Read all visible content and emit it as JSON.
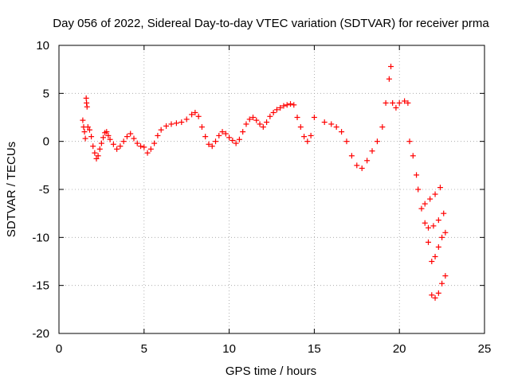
{
  "chart_data": {
    "type": "scatter",
    "title": "Day 056 of 2022, Sidereal Day-to-day VTEC variation (SDTVAR) for receiver prma",
    "xlabel": "GPS time / hours",
    "ylabel": "SDTVAR / TECUs",
    "xlim": [
      0,
      25
    ],
    "ylim": [
      -20,
      10
    ],
    "xticks": [
      0,
      5,
      10,
      15,
      20,
      25
    ],
    "yticks": [
      -20,
      -15,
      -10,
      -5,
      0,
      5,
      10
    ],
    "xtick_labels": [
      "0",
      "5",
      "10",
      "15",
      "20",
      "25"
    ],
    "ytick_labels": [
      "-20",
      "-15",
      "-10",
      "-5",
      "0",
      "5",
      "10"
    ],
    "grid": true,
    "marker": "plus",
    "color": "#ff0000",
    "series": [
      {
        "values_xy": [
          [
            1.4,
            2.2
          ],
          [
            1.45,
            1.5
          ],
          [
            1.5,
            1.0
          ],
          [
            1.55,
            0.3
          ],
          [
            1.6,
            4.5
          ],
          [
            1.62,
            4.0
          ],
          [
            1.65,
            3.6
          ],
          [
            1.7,
            1.5
          ],
          [
            1.8,
            1.2
          ],
          [
            1.9,
            0.5
          ],
          [
            2.0,
            -0.5
          ],
          [
            2.1,
            -1.2
          ],
          [
            2.2,
            -1.8
          ],
          [
            2.3,
            -1.5
          ],
          [
            2.4,
            -0.8
          ],
          [
            2.5,
            -0.2
          ],
          [
            2.6,
            0.4
          ],
          [
            2.7,
            0.9
          ],
          [
            2.8,
            1.0
          ],
          [
            2.9,
            0.6
          ],
          [
            3.0,
            0.2
          ],
          [
            3.2,
            -0.3
          ],
          [
            3.4,
            -0.8
          ],
          [
            3.6,
            -0.5
          ],
          [
            3.8,
            0.0
          ],
          [
            4.0,
            0.5
          ],
          [
            4.2,
            0.8
          ],
          [
            4.4,
            0.3
          ],
          [
            4.6,
            -0.2
          ],
          [
            4.8,
            -0.5
          ],
          [
            5.0,
            -0.6
          ],
          [
            5.2,
            -1.2
          ],
          [
            5.4,
            -0.8
          ],
          [
            5.6,
            -0.2
          ],
          [
            5.8,
            0.6
          ],
          [
            6.0,
            1.2
          ],
          [
            6.3,
            1.6
          ],
          [
            6.6,
            1.8
          ],
          [
            6.9,
            1.9
          ],
          [
            7.2,
            2.0
          ],
          [
            7.5,
            2.3
          ],
          [
            7.8,
            2.8
          ],
          [
            8.0,
            3.0
          ],
          [
            8.2,
            2.6
          ],
          [
            8.4,
            1.5
          ],
          [
            8.6,
            0.5
          ],
          [
            8.8,
            -0.3
          ],
          [
            9.0,
            -0.5
          ],
          [
            9.2,
            0.0
          ],
          [
            9.4,
            0.6
          ],
          [
            9.6,
            1.0
          ],
          [
            9.8,
            0.8
          ],
          [
            10.0,
            0.4
          ],
          [
            10.2,
            0.1
          ],
          [
            10.4,
            -0.2
          ],
          [
            10.6,
            0.2
          ],
          [
            10.8,
            1.0
          ],
          [
            11.0,
            1.8
          ],
          [
            11.2,
            2.3
          ],
          [
            11.4,
            2.5
          ],
          [
            11.6,
            2.2
          ],
          [
            11.8,
            1.8
          ],
          [
            12.0,
            1.5
          ],
          [
            12.2,
            2.0
          ],
          [
            12.4,
            2.6
          ],
          [
            12.6,
            3.0
          ],
          [
            12.8,
            3.3
          ],
          [
            13.0,
            3.5
          ],
          [
            13.2,
            3.7
          ],
          [
            13.4,
            3.8
          ],
          [
            13.6,
            3.9
          ],
          [
            13.8,
            3.8
          ],
          [
            14.0,
            2.5
          ],
          [
            14.2,
            1.5
          ],
          [
            14.4,
            0.5
          ],
          [
            14.6,
            0.0
          ],
          [
            14.8,
            0.6
          ],
          [
            15.0,
            2.5
          ],
          [
            15.6,
            2.0
          ],
          [
            16.0,
            1.8
          ],
          [
            16.3,
            1.5
          ],
          [
            16.6,
            1.0
          ],
          [
            16.9,
            0.0
          ],
          [
            17.2,
            -1.5
          ],
          [
            17.5,
            -2.5
          ],
          [
            17.8,
            -2.8
          ],
          [
            18.1,
            -2.0
          ],
          [
            18.4,
            -1.0
          ],
          [
            18.7,
            0.0
          ],
          [
            19.0,
            1.5
          ],
          [
            19.2,
            4.0
          ],
          [
            19.4,
            6.5
          ],
          [
            19.5,
            7.8
          ],
          [
            19.6,
            4.0
          ],
          [
            19.8,
            3.5
          ],
          [
            20.0,
            4.0
          ],
          [
            20.3,
            4.2
          ],
          [
            20.5,
            4.0
          ],
          [
            20.6,
            0.0
          ],
          [
            20.8,
            -1.5
          ],
          [
            21.0,
            -3.5
          ],
          [
            21.1,
            -5.0
          ],
          [
            21.3,
            -7.0
          ],
          [
            21.5,
            -8.5
          ],
          [
            21.7,
            -10.5
          ],
          [
            21.9,
            -12.5
          ],
          [
            22.1,
            -12.0
          ],
          [
            22.3,
            -11.0
          ],
          [
            22.5,
            -10.0
          ],
          [
            22.7,
            -9.5
          ],
          [
            21.5,
            -6.5
          ],
          [
            21.8,
            -6.0
          ],
          [
            22.1,
            -5.5
          ],
          [
            22.4,
            -4.8
          ],
          [
            21.7,
            -9.0
          ],
          [
            22.0,
            -8.8
          ],
          [
            22.3,
            -8.2
          ],
          [
            22.6,
            -7.5
          ],
          [
            21.9,
            -16.0
          ],
          [
            22.1,
            -16.3
          ],
          [
            22.3,
            -15.8
          ],
          [
            22.5,
            -14.8
          ],
          [
            22.7,
            -14.0
          ]
        ]
      }
    ]
  }
}
